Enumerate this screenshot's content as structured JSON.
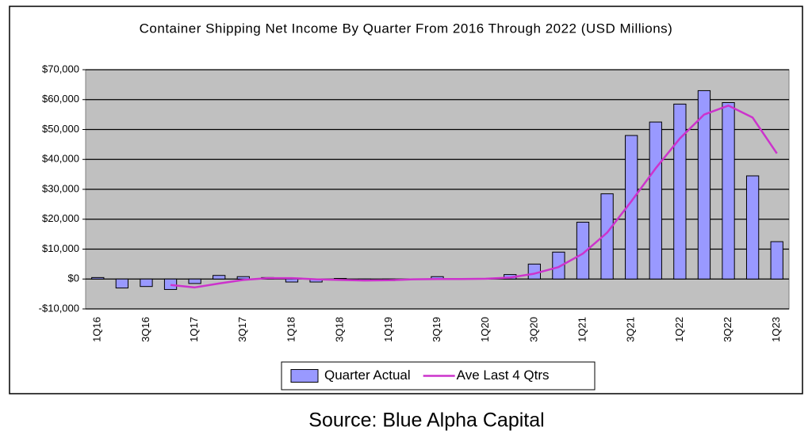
{
  "chart_data": {
    "type": "bar",
    "title": "Container Shipping Net Income By Quarter From 2016 Through 2022 (USD Millions)",
    "source": "Source: Blue Alpha Capital",
    "categories": [
      "1Q16",
      null,
      "3Q16",
      null,
      "1Q17",
      null,
      "3Q17",
      null,
      "1Q18",
      null,
      "3Q18",
      null,
      "1Q19",
      null,
      "3Q19",
      null,
      "1Q20",
      null,
      "3Q20",
      null,
      "1Q21",
      null,
      "3Q21",
      null,
      "1Q22",
      null,
      "3Q22",
      null,
      "1Q23"
    ],
    "series": [
      {
        "name": "Quarter Actual",
        "type": "bar",
        "color": "#9999ff",
        "values": [
          500,
          -3000,
          -2500,
          -3500,
          -1500,
          1200,
          800,
          500,
          -1000,
          -1000,
          200,
          -500,
          -500,
          0,
          800,
          0,
          200,
          1500,
          5000,
          9000,
          19000,
          28500,
          48000,
          52500,
          58500,
          63000,
          59000,
          34500,
          12500
        ]
      },
      {
        "name": "Ave Last 4 Qtrs",
        "type": "line",
        "color": "#cc33cc",
        "values": [
          null,
          null,
          null,
          -2000,
          -2800,
          -1500,
          -300,
          300,
          300,
          -100,
          -300,
          -500,
          -400,
          -100,
          0,
          0,
          100,
          500,
          1800,
          4000,
          8500,
          15500,
          26000,
          37000,
          47000,
          55000,
          58000,
          54000,
          42000
        ]
      }
    ],
    "ylim": [
      -10000,
      70000
    ],
    "yticks": [
      {
        "value": -10000,
        "label": "-$10,000"
      },
      {
        "value": 0,
        "label": "$0"
      },
      {
        "value": 10000,
        "label": "$10,000"
      },
      {
        "value": 20000,
        "label": "$20,000"
      },
      {
        "value": 30000,
        "label": "$30,000"
      },
      {
        "value": 40000,
        "label": "$40,000"
      },
      {
        "value": 50000,
        "label": "$50,000"
      },
      {
        "value": 60000,
        "label": "$60,000"
      },
      {
        "value": 70000,
        "label": "$70,000"
      }
    ],
    "grid": true,
    "plot_background": "#c0c0c0",
    "legend": "bottom"
  }
}
